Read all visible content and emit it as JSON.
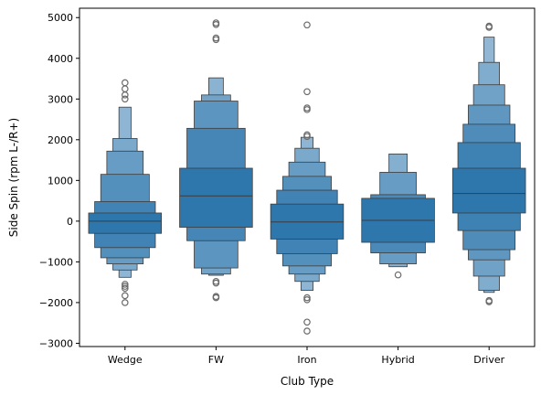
{
  "chart_data": {
    "type": "boxen",
    "title": "",
    "xlabel": "Club Type",
    "ylabel": "Side Spin (rpm L-/R+)",
    "ylim": [
      -3080,
      5230
    ],
    "yticks": [
      -3000,
      -2000,
      -1000,
      0,
      1000,
      2000,
      3000,
      4000,
      5000
    ],
    "grid": false,
    "color": "#2e77ad",
    "categories": [
      "Wedge",
      "FW",
      "Iron",
      "Hybrid",
      "Driver"
    ],
    "series": [
      {
        "category": "Wedge",
        "median": 0,
        "boxes": [
          [
            -300,
            200
          ],
          [
            -650,
            480
          ],
          [
            -900,
            1150
          ],
          [
            -1050,
            1720
          ],
          [
            -1200,
            2030
          ],
          [
            -1380,
            2800
          ]
        ],
        "outliers": [
          3400,
          3250,
          3100,
          3000,
          -1550,
          -1600,
          -1650,
          -1830,
          -2000
        ]
      },
      {
        "category": "FW",
        "median": 620,
        "boxes": [
          [
            -150,
            1300
          ],
          [
            -480,
            2280
          ],
          [
            -1150,
            2950
          ],
          [
            -1300,
            3100
          ],
          [
            -1330,
            3520
          ]
        ],
        "outliers": [
          4870,
          4830,
          4500,
          4460,
          -1480,
          -1520,
          -1850,
          -1880
        ]
      },
      {
        "category": "Iron",
        "median": -20,
        "boxes": [
          [
            -440,
            420
          ],
          [
            -800,
            760
          ],
          [
            -1100,
            1100
          ],
          [
            -1300,
            1450
          ],
          [
            -1480,
            1790
          ],
          [
            -1700,
            2060
          ]
        ],
        "outliers": [
          4820,
          3180,
          2780,
          2740,
          2120,
          2080,
          -1880,
          -1930,
          -2480,
          -2700
        ]
      },
      {
        "category": "Hybrid",
        "median": 20,
        "boxes": [
          [
            -520,
            560
          ],
          [
            -780,
            650
          ],
          [
            -1050,
            1200
          ],
          [
            -1120,
            1650
          ]
        ],
        "outliers": [
          -1320
        ]
      },
      {
        "category": "Driver",
        "median": 680,
        "boxes": [
          [
            200,
            1300
          ],
          [
            -230,
            1930
          ],
          [
            -700,
            2380
          ],
          [
            -950,
            2850
          ],
          [
            -1350,
            3350
          ],
          [
            -1700,
            3900
          ],
          [
            -1750,
            4520
          ]
        ],
        "outliers": [
          4790,
          4760,
          -1950,
          -1980
        ]
      }
    ]
  }
}
